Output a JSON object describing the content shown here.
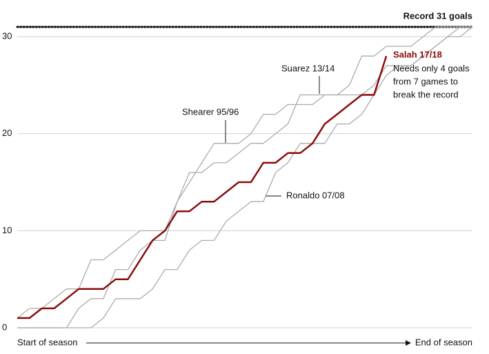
{
  "chart_data": {
    "type": "line",
    "x": [
      1,
      2,
      3,
      4,
      5,
      6,
      7,
      8,
      9,
      10,
      11,
      12,
      13,
      14,
      15,
      16,
      17,
      18,
      19,
      20,
      21,
      22,
      23,
      24,
      25,
      26,
      27,
      28,
      29,
      30,
      31,
      32,
      33,
      34,
      35,
      36,
      37,
      38
    ],
    "xlim": [
      1,
      38
    ],
    "x_start_label": "Start of season",
    "x_end_label": "End of season",
    "ylim": [
      0,
      31
    ],
    "yticks": [
      0,
      10,
      20,
      30
    ],
    "grid": true,
    "record_line": {
      "value": 31,
      "label": "Record 31 goals"
    },
    "series": [
      {
        "name": "Shearer 95/96",
        "color": "#aaaaaa",
        "values": [
          1,
          2,
          2,
          3,
          4,
          4,
          7,
          7,
          8,
          9,
          10,
          10,
          10,
          13,
          15,
          17,
          19,
          19,
          19,
          20,
          22,
          22,
          23,
          23,
          23,
          24,
          24,
          24,
          24,
          25,
          27,
          27,
          27,
          28,
          29,
          30,
          31,
          31
        ]
      },
      {
        "name": "Suarez 13/14",
        "color": "#aaaaaa",
        "values": [
          0,
          0,
          0,
          0,
          0,
          2,
          3,
          3,
          6,
          6,
          8,
          9,
          9,
          13,
          16,
          16,
          17,
          17,
          18,
          19,
          19,
          20,
          21,
          24,
          24,
          24,
          24,
          25,
          28,
          28,
          29,
          29,
          29,
          30,
          31,
          31,
          31,
          31
        ]
      },
      {
        "name": "Ronaldo 07/08",
        "color": "#aaaaaa",
        "values": [
          0,
          0,
          0,
          0,
          0,
          0,
          0,
          1,
          3,
          3,
          3,
          4,
          6,
          6,
          8,
          9,
          9,
          11,
          12,
          13,
          13,
          16,
          17,
          19,
          19,
          19,
          21,
          21,
          22,
          24,
          26,
          27,
          27,
          28,
          29,
          30,
          30,
          31
        ]
      },
      {
        "name": "Salah 17/18",
        "color": "#8b0a0a",
        "values": [
          1,
          1,
          2,
          2,
          3,
          4,
          4,
          4,
          5,
          5,
          7,
          9,
          10,
          12,
          12,
          13,
          13,
          14,
          15,
          15,
          17,
          17,
          18,
          18,
          19,
          21,
          22,
          23,
          24,
          24,
          28,
          null,
          null,
          null,
          null,
          null,
          null,
          null
        ],
        "annotation": [
          "Needs only 4 goals",
          "from 7 games to",
          "break the record"
        ]
      }
    ]
  }
}
